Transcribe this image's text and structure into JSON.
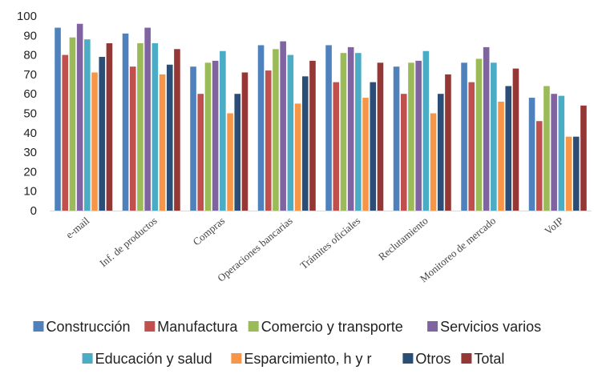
{
  "chart_data": {
    "type": "bar",
    "categories": [
      "e-mail",
      "Inf. de productos",
      "Compras",
      "Operaciones bancarias",
      "Trámites oficiales",
      "Reclutamiento",
      "Monitoreo de mercado",
      "VoIP"
    ],
    "series": [
      {
        "name": "Construcción",
        "color": "#4f81bd",
        "values": [
          94,
          91,
          74,
          85,
          85,
          74,
          76,
          58
        ]
      },
      {
        "name": "Manufactura",
        "color": "#c0504d",
        "values": [
          80,
          74,
          60,
          72,
          66,
          60,
          66,
          46
        ]
      },
      {
        "name": "Comercio y transporte",
        "color": "#9bbb59",
        "values": [
          89,
          86,
          76,
          83,
          81,
          76,
          78,
          64
        ]
      },
      {
        "name": "Servicios varios",
        "color": "#8064a2",
        "values": [
          96,
          94,
          77,
          87,
          84,
          77,
          84,
          60
        ]
      },
      {
        "name": "Educación y salud",
        "color": "#4bacc6",
        "values": [
          88,
          86,
          82,
          80,
          81,
          82,
          76,
          59
        ]
      },
      {
        "name": "Esparcimiento, h y r",
        "color": "#f79646",
        "values": [
          71,
          70,
          50,
          55,
          58,
          50,
          56,
          38
        ]
      },
      {
        "name": "Otros",
        "color": "#2c4d75",
        "values": [
          79,
          75,
          60,
          69,
          66,
          60,
          64,
          38
        ]
      },
      {
        "name": "Total",
        "color": "#953735",
        "values": [
          86,
          83,
          71,
          77,
          76,
          70,
          73,
          54
        ]
      }
    ],
    "ylim": [
      0,
      100
    ],
    "yticks": [
      "0",
      "10",
      "20",
      "30",
      "40",
      "50",
      "60",
      "70",
      "80",
      "90",
      "100"
    ],
    "grid": false,
    "legend_position": "bottom"
  }
}
